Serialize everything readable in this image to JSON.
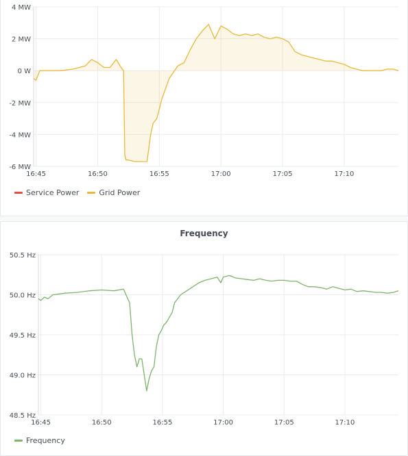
{
  "chart_data": [
    {
      "type": "area",
      "title": "",
      "unit": "MW",
      "ylim": [
        -6,
        4
      ],
      "yticks": [
        "4 MW",
        "2 MW",
        "0 W",
        "-2 MW",
        "-4 MW",
        "-6 MW"
      ],
      "ytick_values": [
        4,
        2,
        0,
        -2,
        -4,
        -6
      ],
      "xlim": [
        "16:44",
        "16:54.5"
      ],
      "xticks": [
        "16:45",
        "16:50",
        "16:55",
        "17:00",
        "17:05",
        "17:10"
      ],
      "xtick_minutes": [
        45,
        50,
        55,
        60,
        65,
        70
      ],
      "x_minutes_start": 44.8,
      "x_minutes_end": 74.4,
      "grid": true,
      "legend_position": "bottom-left",
      "series": [
        {
          "name": "Service Power",
          "color": "#e24d42",
          "values": []
        },
        {
          "name": "Grid Power",
          "color": "#eab839",
          "x": [
            44.8,
            45.0,
            45.3,
            46.0,
            47.0,
            48.0,
            49.0,
            49.5,
            50.0,
            50.5,
            51.0,
            51.5,
            51.9,
            52.1,
            52.2,
            52.3,
            52.5,
            53.0,
            53.5,
            54.0,
            54.3,
            54.5,
            54.8,
            55.2,
            55.8,
            56.5,
            57.0,
            57.5,
            58.0,
            58.5,
            59.0,
            59.5,
            60.0,
            60.5,
            61.0,
            61.5,
            62.0,
            62.5,
            63.0,
            63.5,
            64.0,
            64.5,
            65.0,
            65.5,
            66.0,
            66.5,
            67.0,
            67.5,
            68.0,
            68.5,
            69.0,
            69.5,
            70.0,
            70.5,
            71.0,
            71.5,
            72.0,
            72.5,
            73.0,
            73.5,
            74.0,
            74.4
          ],
          "values": [
            -0.5,
            -0.6,
            0.0,
            0.0,
            0.0,
            0.1,
            0.3,
            0.7,
            0.5,
            0.2,
            0.2,
            0.7,
            0.2,
            0.0,
            -5.3,
            -5.6,
            -5.6,
            -5.7,
            -5.7,
            -5.7,
            -4.0,
            -3.3,
            -3.0,
            -1.8,
            -0.5,
            0.3,
            0.5,
            1.3,
            2.0,
            2.5,
            2.9,
            2.0,
            2.8,
            2.6,
            2.3,
            2.2,
            2.3,
            2.2,
            2.3,
            2.1,
            2.0,
            2.1,
            2.0,
            1.8,
            1.2,
            1.0,
            0.9,
            0.8,
            0.7,
            0.6,
            0.6,
            0.5,
            0.4,
            0.2,
            0.1,
            0.0,
            0.0,
            0.0,
            0.0,
            0.1,
            0.1,
            0.0
          ]
        }
      ]
    },
    {
      "type": "line",
      "title": "Frequency",
      "unit": "Hz",
      "ylim": [
        48.5,
        50.5
      ],
      "yticks": [
        "50.5 Hz",
        "50.0 Hz",
        "49.5 Hz",
        "49.0 Hz",
        "48.5 Hz"
      ],
      "ytick_values": [
        50.5,
        50.0,
        49.5,
        49.0,
        48.5
      ],
      "xticks": [
        "16:45",
        "16:50",
        "16:55",
        "17:00",
        "17:05",
        "17:10"
      ],
      "xtick_minutes": [
        45,
        50,
        55,
        60,
        65,
        70
      ],
      "x_minutes_start": 44.8,
      "x_minutes_end": 74.4,
      "grid": true,
      "legend_position": "bottom-left",
      "series": [
        {
          "name": "Frequency",
          "color": "#7eb26d",
          "x": [
            44.8,
            45.0,
            45.3,
            45.6,
            46.0,
            47.0,
            48.0,
            49.0,
            50.0,
            51.0,
            51.8,
            52.0,
            52.3,
            52.5,
            52.7,
            52.9,
            53.1,
            53.3,
            53.5,
            53.7,
            53.9,
            54.1,
            54.3,
            54.5,
            54.7,
            54.9,
            55.1,
            55.3,
            55.5,
            55.8,
            56.0,
            56.5,
            57.0,
            57.5,
            58.0,
            58.5,
            59.0,
            59.5,
            59.8,
            60.0,
            60.5,
            61.0,
            61.5,
            62.0,
            62.5,
            63.0,
            63.5,
            64.0,
            64.5,
            65.0,
            65.5,
            66.0,
            66.5,
            67.0,
            67.5,
            68.0,
            68.5,
            69.0,
            69.5,
            70.0,
            70.5,
            71.0,
            71.5,
            72.0,
            72.5,
            73.0,
            73.5,
            74.0,
            74.4
          ],
          "values": [
            49.95,
            49.93,
            49.97,
            49.95,
            50.0,
            50.02,
            50.03,
            50.05,
            50.06,
            50.05,
            50.07,
            50.0,
            49.9,
            49.5,
            49.25,
            49.1,
            49.2,
            49.2,
            49.0,
            48.8,
            48.95,
            49.05,
            49.1,
            49.35,
            49.5,
            49.55,
            49.62,
            49.65,
            49.7,
            49.78,
            49.9,
            50.0,
            50.05,
            50.1,
            50.15,
            50.18,
            50.2,
            50.22,
            50.15,
            50.22,
            50.24,
            50.21,
            50.2,
            50.19,
            50.18,
            50.2,
            50.18,
            50.17,
            50.18,
            50.18,
            50.17,
            50.17,
            50.13,
            50.1,
            50.1,
            50.09,
            50.07,
            50.1,
            50.08,
            50.06,
            50.07,
            50.04,
            50.05,
            50.04,
            50.03,
            50.03,
            50.02,
            50.03,
            50.05
          ]
        }
      ]
    }
  ]
}
